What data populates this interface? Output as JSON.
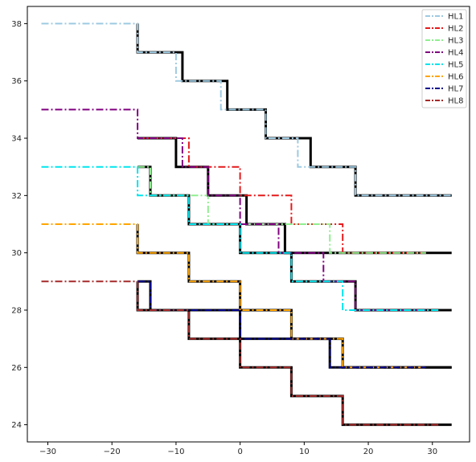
{
  "chart_data": {
    "type": "line",
    "title": "",
    "xlabel": "",
    "ylabel": "",
    "xlim": [
      -33.2,
      35.8
    ],
    "ylim": [
      23.4,
      38.6
    ],
    "grid": false,
    "legend_position": "top-right",
    "x_ticks": [
      -30,
      -20,
      -10,
      0,
      10,
      20,
      30
    ],
    "y_ticks": [
      24,
      26,
      28,
      30,
      32,
      34,
      36,
      38
    ],
    "series": [
      {
        "name": "HL1",
        "color": "#9ecae1",
        "style": "dashdot",
        "points": [
          [
            -31,
            38
          ],
          [
            -16,
            38
          ],
          [
            -16,
            37
          ],
          [
            -10,
            37
          ],
          [
            -10,
            36
          ],
          [
            -3,
            36
          ],
          [
            -3,
            35
          ],
          [
            4,
            35
          ],
          [
            4,
            34
          ],
          [
            9,
            34
          ],
          [
            9,
            33
          ],
          [
            18,
            33
          ],
          [
            18,
            32
          ],
          [
            33,
            32
          ]
        ]
      },
      {
        "name": "HL2",
        "color": "#e41a1c",
        "style": "dashdot",
        "points": [
          [
            -16,
            34
          ],
          [
            -8,
            34
          ],
          [
            -8,
            33
          ],
          [
            0,
            33
          ],
          [
            0,
            32
          ],
          [
            8,
            32
          ],
          [
            8,
            31
          ],
          [
            16,
            31
          ],
          [
            16,
            30
          ],
          [
            29,
            30
          ]
        ]
      },
      {
        "name": "HL3",
        "color": "#90ee90",
        "style": "dashdot",
        "points": [
          [
            -16,
            33
          ],
          [
            -14,
            33
          ],
          [
            -14,
            32
          ],
          [
            -5,
            32
          ],
          [
            -5,
            31
          ],
          [
            6,
            31
          ],
          [
            6,
            31
          ],
          [
            14,
            31
          ],
          [
            14,
            30
          ],
          [
            29,
            30
          ]
        ]
      },
      {
        "name": "HL4",
        "color": "#800080",
        "style": "dashdot",
        "points": [
          [
            -31,
            35
          ],
          [
            -16,
            35
          ],
          [
            -16,
            34
          ],
          [
            -9,
            34
          ],
          [
            -9,
            33
          ],
          [
            -5,
            33
          ],
          [
            -5,
            32
          ],
          [
            0,
            32
          ],
          [
            0,
            31
          ],
          [
            6,
            31
          ],
          [
            6,
            30
          ],
          [
            13,
            30
          ],
          [
            13,
            29
          ],
          [
            18,
            29
          ],
          [
            18,
            28
          ],
          [
            29,
            28
          ]
        ]
      },
      {
        "name": "HL5",
        "color": "#00e5ee",
        "style": "dashdot",
        "points": [
          [
            -31,
            33
          ],
          [
            -16,
            33
          ],
          [
            -16,
            32
          ],
          [
            -8,
            32
          ],
          [
            -8,
            31
          ],
          [
            0,
            31
          ],
          [
            0,
            30
          ],
          [
            8,
            30
          ],
          [
            8,
            29
          ],
          [
            16,
            29
          ],
          [
            16,
            28
          ],
          [
            31,
            28
          ]
        ]
      },
      {
        "name": "HL6",
        "color": "#ffa500",
        "style": "dashdot",
        "points": [
          [
            -31,
            31
          ],
          [
            -16,
            31
          ],
          [
            -16,
            30
          ],
          [
            -8,
            30
          ],
          [
            -8,
            29
          ],
          [
            0,
            29
          ],
          [
            0,
            28
          ],
          [
            8,
            28
          ],
          [
            8,
            27
          ],
          [
            16,
            27
          ],
          [
            16,
            26
          ],
          [
            29,
            26
          ]
        ]
      },
      {
        "name": "HL7",
        "color": "#00008b",
        "style": "dashdot",
        "points": [
          [
            -16,
            29
          ],
          [
            -14,
            29
          ],
          [
            -14,
            28
          ],
          [
            0,
            28
          ],
          [
            0,
            27
          ],
          [
            14,
            27
          ],
          [
            14,
            26
          ],
          [
            29,
            26
          ]
        ]
      },
      {
        "name": "HL8",
        "color": "#a52a2a",
        "style": "dashdot",
        "points": [
          [
            -31,
            29
          ],
          [
            -16,
            29
          ],
          [
            -16,
            28
          ],
          [
            -8,
            28
          ],
          [
            -8,
            27
          ],
          [
            0,
            27
          ],
          [
            0,
            26
          ],
          [
            8,
            26
          ],
          [
            8,
            25
          ],
          [
            16,
            25
          ],
          [
            16,
            24
          ],
          [
            31,
            24
          ]
        ]
      }
    ],
    "black_steps": [
      {
        "color": "#000000",
        "points": [
          [
            -16,
            38
          ],
          [
            -16,
            37
          ],
          [
            -9,
            37
          ],
          [
            -9,
            36
          ],
          [
            -2,
            36
          ],
          [
            -2,
            35
          ],
          [
            4,
            35
          ],
          [
            4,
            34
          ],
          [
            11,
            34
          ],
          [
            11,
            33
          ],
          [
            18,
            33
          ],
          [
            18,
            32
          ],
          [
            33,
            32
          ]
        ]
      },
      {
        "color": "#000000",
        "points": [
          [
            -16,
            34
          ],
          [
            -10,
            34
          ],
          [
            -10,
            33
          ],
          [
            -5,
            33
          ],
          [
            -5,
            32
          ],
          [
            1,
            32
          ],
          [
            1,
            31
          ],
          [
            7,
            31
          ],
          [
            7,
            30
          ],
          [
            14,
            30
          ],
          [
            14,
            30
          ],
          [
            33,
            30
          ]
        ]
      },
      {
        "color": "#000000",
        "points": [
          [
            -16,
            33
          ],
          [
            -14,
            33
          ],
          [
            -14,
            32
          ],
          [
            -8,
            32
          ],
          [
            -8,
            31
          ],
          [
            0,
            31
          ],
          [
            0,
            30
          ],
          [
            8,
            30
          ],
          [
            8,
            29
          ],
          [
            18,
            29
          ],
          [
            18,
            28
          ],
          [
            33,
            28
          ]
        ]
      },
      {
        "color": "#000000",
        "points": [
          [
            -16,
            31
          ],
          [
            -16,
            30
          ],
          [
            -8,
            30
          ],
          [
            -8,
            29
          ],
          [
            0,
            29
          ],
          [
            0,
            28
          ],
          [
            8,
            28
          ],
          [
            8,
            27
          ],
          [
            16,
            27
          ],
          [
            16,
            26
          ],
          [
            33,
            26
          ]
        ]
      },
      {
        "color": "#000000",
        "points": [
          [
            -16,
            29
          ],
          [
            -14,
            29
          ],
          [
            -14,
            28
          ],
          [
            0,
            28
          ],
          [
            0,
            27
          ],
          [
            14,
            27
          ],
          [
            14,
            26
          ],
          [
            33,
            26
          ]
        ]
      },
      {
        "color": "#000000",
        "points": [
          [
            -16,
            29
          ],
          [
            -16,
            28
          ],
          [
            -8,
            28
          ],
          [
            -8,
            27
          ],
          [
            0,
            27
          ],
          [
            0,
            26
          ],
          [
            8,
            26
          ],
          [
            8,
            25
          ],
          [
            16,
            25
          ],
          [
            16,
            24
          ],
          [
            33,
            24
          ]
        ]
      }
    ]
  }
}
